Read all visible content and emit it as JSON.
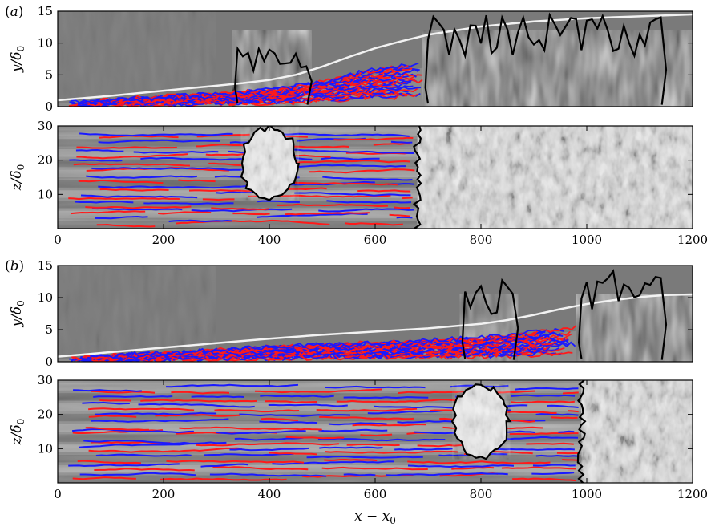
{
  "chart_data": [
    {
      "type": "heatmap",
      "panel_label": "(a)",
      "ylabel": "y/δ0",
      "xlim": [
        0,
        1200
      ],
      "ylim": [
        0,
        15
      ],
      "yticks": [
        0,
        5,
        10,
        15
      ],
      "boundary_layer_edge": {
        "x": [
          0,
          100,
          200,
          300,
          350,
          400,
          450,
          500,
          550,
          600,
          650,
          700,
          800,
          900,
          1000,
          1100,
          1200
        ],
        "y": [
          1.0,
          1.7,
          2.5,
          3.3,
          3.7,
          4.2,
          5.0,
          6.3,
          7.8,
          9.2,
          10.3,
          11.3,
          12.6,
          13.4,
          13.9,
          14.2,
          14.5
        ]
      },
      "streak_colors": {
        "high_speed": "#ff1a1a",
        "low_speed": "#1a1aff",
        "turbulent_contour": "#000000",
        "edge": "#f2f2f2"
      }
    },
    {
      "type": "heatmap",
      "ylabel": "z/δ0",
      "xlim": [
        0,
        1200
      ],
      "ylim": [
        0,
        30
      ],
      "yticks": [
        10,
        20,
        30
      ],
      "xticks": [
        0,
        200,
        400,
        600,
        800,
        1000,
        1200
      ],
      "turbulent_spot_center": [
        400,
        19
      ],
      "turbulent_front_x": 680
    },
    {
      "type": "heatmap",
      "panel_label": "(b)",
      "ylabel": "y/δ0",
      "xlim": [
        0,
        1200
      ],
      "ylim": [
        0,
        15
      ],
      "yticks": [
        0,
        5,
        10,
        15
      ],
      "boundary_layer_edge": {
        "x": [
          0,
          100,
          200,
          300,
          400,
          500,
          600,
          700,
          800,
          850,
          900,
          950,
          1000,
          1050,
          1100,
          1150,
          1200
        ],
        "y": [
          0.8,
          1.5,
          2.2,
          2.9,
          3.6,
          4.2,
          4.7,
          5.2,
          5.9,
          6.5,
          7.3,
          8.2,
          9.0,
          9.6,
          10.1,
          10.4,
          10.5
        ]
      }
    },
    {
      "type": "heatmap",
      "ylabel": "z/δ0",
      "xlabel": "x − x0",
      "xlim": [
        0,
        1200
      ],
      "ylim": [
        0,
        30
      ],
      "yticks": [
        10,
        20,
        30
      ],
      "xticks": [
        0,
        200,
        400,
        600,
        800,
        1000,
        1200
      ],
      "turbulent_spot_center": [
        800,
        18
      ],
      "turbulent_front_x": 990
    }
  ]
}
